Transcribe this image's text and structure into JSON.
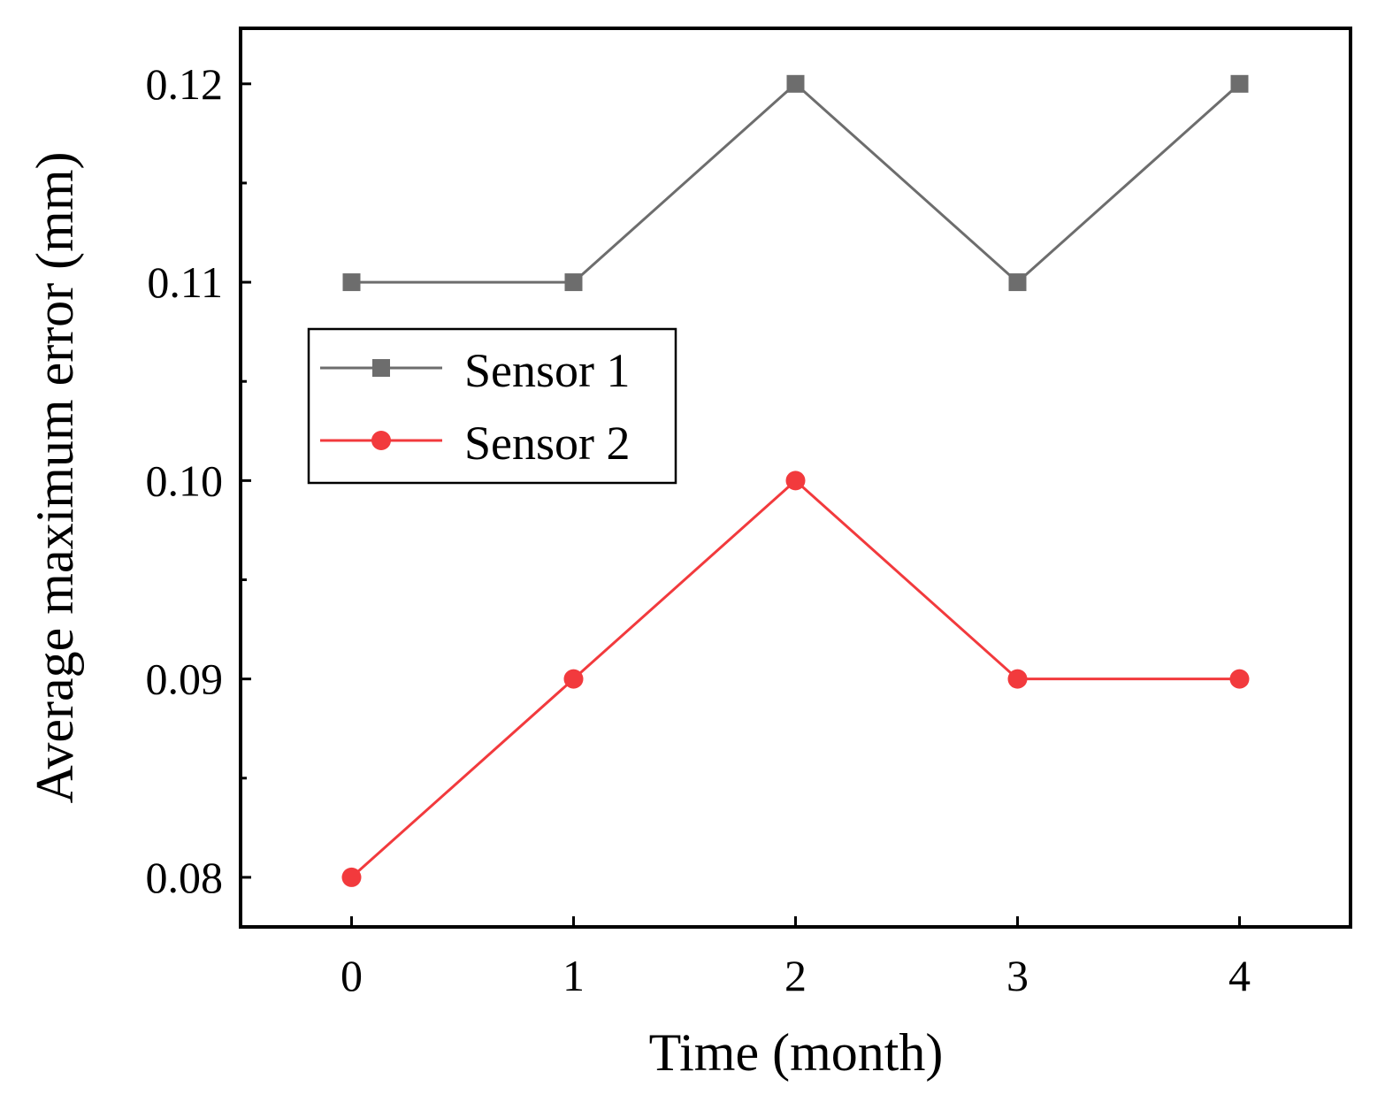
{
  "chart_data": {
    "type": "line",
    "title": "",
    "xlabel": "Time (month)",
    "ylabel": "Average maximum error (mm)",
    "x": [
      0,
      1,
      2,
      3,
      4
    ],
    "xlim": [
      -0.5,
      4.5
    ],
    "ylim": [
      0.0775,
      0.1228
    ],
    "xticks": [
      "0",
      "1",
      "2",
      "3",
      "4"
    ],
    "yticks": [
      "0.08",
      "0.09",
      "0.10",
      "0.11",
      "0.12"
    ],
    "ytick_values": [
      0.08,
      0.09,
      0.1,
      0.11,
      0.12
    ],
    "legend_position": "upper-left",
    "grid": false,
    "series": [
      {
        "name": "Sensor 1",
        "values": [
          0.11,
          0.11,
          0.12,
          0.11,
          0.12
        ],
        "color": "#6d6d6d",
        "marker": "square"
      },
      {
        "name": "Sensor 2",
        "values": [
          0.08,
          0.09,
          0.1,
          0.09,
          0.09
        ],
        "color": "#f23a3d",
        "marker": "circle"
      }
    ]
  }
}
